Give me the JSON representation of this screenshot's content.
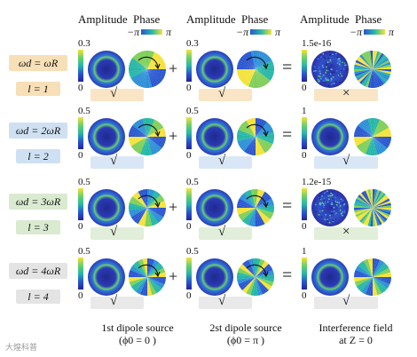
{
  "headers": {
    "amplitude": "Amplitude",
    "phase": "Phase",
    "minus_pi": "−π",
    "pi": "π"
  },
  "rows": [
    {
      "band_color": "#f7dfb7",
      "freq_label": "ωd = ωR",
      "l_label": "l = 1",
      "src1": {
        "cb_max": "0.3",
        "cb_min": "0",
        "check": "√"
      },
      "src2": {
        "cb_max": "0.3",
        "cb_min": "0"
      },
      "result": {
        "cb_max": "1.5e-16",
        "cb_min": "0",
        "mark": "×"
      }
    },
    {
      "band_color": "#cfe0f2",
      "freq_label": "ωd = 2ωR",
      "l_label": "l = 2",
      "src1": {
        "cb_max": "0.5",
        "cb_min": "0",
        "check": "√"
      },
      "src2": {
        "cb_max": "0.5",
        "cb_min": "0"
      },
      "result": {
        "cb_max": "1",
        "cb_min": "0",
        "mark": "√"
      }
    },
    {
      "band_color": "#d9ead0",
      "freq_label": "ωd = 3ωR",
      "l_label": "l = 3",
      "src1": {
        "cb_max": "0.5",
        "cb_min": "0",
        "check": "√"
      },
      "src2": {
        "cb_max": "0.5",
        "cb_min": "0"
      },
      "result": {
        "cb_max": "1.2e-15",
        "cb_min": "0",
        "mark": "×"
      }
    },
    {
      "band_color": "#e4e4e4",
      "freq_label": "ωd = 4ωR",
      "l_label": "l = 4",
      "src1": {
        "cb_max": "0.5",
        "cb_min": "0",
        "check": "√"
      },
      "src2": {
        "cb_max": "0.5",
        "cb_min": "0"
      },
      "result": {
        "cb_max": "1",
        "cb_min": "0",
        "mark": "√"
      }
    }
  ],
  "operators": {
    "plus": "+",
    "equals": "="
  },
  "captions": {
    "col1_line1": "1st dipole source",
    "col1_line2": "(ϕ0 = 0 )",
    "col2_line1": "2st dipole source",
    "col2_line2": "(ϕ0 = π )",
    "col3_line1": "Interference field",
    "col3_line2": "at Z = 0"
  },
  "watermark": "大煌科普",
  "colors": {
    "amp_dark": "#2a2fa6",
    "amp_ring": "#6bd06a",
    "phase_yellow": "#f4e23a",
    "phase_blue": "#2a56d0",
    "phase_teal": "#27b7a8"
  }
}
